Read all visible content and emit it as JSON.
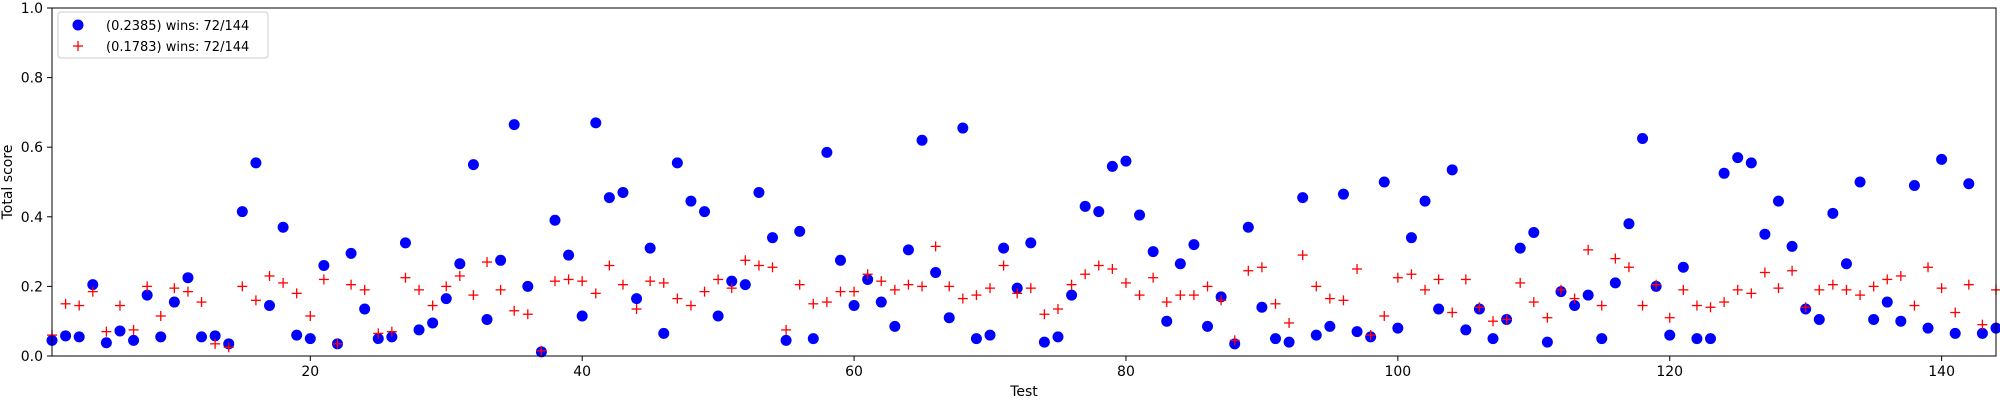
{
  "chart_data": {
    "type": "scatter",
    "xlabel": "Test",
    "ylabel": "Total score",
    "xlim": [
      1,
      144
    ],
    "ylim": [
      0,
      1.0
    ],
    "x_ticks": [
      20,
      40,
      60,
      80,
      100,
      120,
      140
    ],
    "y_ticks": [
      0.0,
      0.2,
      0.4,
      0.6,
      0.8,
      1.0
    ],
    "x_tick_labels": [
      "20",
      "40",
      "60",
      "80",
      "100",
      "120",
      "140"
    ],
    "y_tick_labels": [
      "0.0",
      "0.2",
      "0.4",
      "0.6",
      "0.8",
      "1.0"
    ],
    "grid": false,
    "legend_position": "top-left",
    "series": [
      {
        "name": "(0.2385) wins: 72/144",
        "marker": "circle",
        "color": "#0000ff",
        "values": [
          0.045,
          0.058,
          0.055,
          0.205,
          0.038,
          0.072,
          0.045,
          0.175,
          0.055,
          0.155,
          0.225,
          0.055,
          0.058,
          0.035,
          0.415,
          0.555,
          0.145,
          0.37,
          0.06,
          0.05,
          0.26,
          0.035,
          0.295,
          0.135,
          0.05,
          0.055,
          0.325,
          0.075,
          0.095,
          0.165,
          0.265,
          0.55,
          0.105,
          0.275,
          0.665,
          0.2,
          0.012,
          0.39,
          0.29,
          0.115,
          0.67,
          0.455,
          0.47,
          0.165,
          0.31,
          0.065,
          0.555,
          0.445,
          0.415,
          0.115,
          0.215,
          0.205,
          0.47,
          0.34,
          0.045,
          0.358,
          0.05,
          0.585,
          0.275,
          0.145,
          0.22,
          0.155,
          0.085,
          0.305,
          0.62,
          0.24,
          0.11,
          0.655,
          0.05,
          0.06,
          0.31,
          0.195,
          0.325,
          0.04,
          0.055,
          0.175,
          0.43,
          0.415,
          0.545,
          0.56,
          0.405,
          0.3,
          0.1,
          0.265,
          0.32,
          0.085,
          0.17,
          0.035,
          0.37,
          0.14,
          0.05,
          0.04,
          0.455,
          0.06,
          0.085,
          0.465,
          0.07,
          0.055,
          0.5,
          0.08,
          0.34,
          0.445,
          0.135,
          0.535,
          0.075,
          0.135,
          0.05,
          0.105,
          0.31,
          0.355,
          0.04,
          0.185,
          0.145,
          0.175,
          0.05,
          0.21,
          0.38,
          0.625,
          0.2,
          0.06,
          0.255,
          0.05,
          0.05,
          0.525,
          0.57,
          0.555,
          0.35,
          0.445,
          0.315,
          0.135,
          0.105,
          0.41,
          0.265,
          0.5,
          0.105,
          0.155,
          0.1,
          0.49,
          0.08,
          0.565,
          0.065,
          0.495,
          0.065,
          0.08
        ]
      },
      {
        "name": "(0.1783) wins: 72/144",
        "marker": "plus",
        "color": "#ff0000",
        "values": [
          0.06,
          0.15,
          0.145,
          0.185,
          0.07,
          0.145,
          0.075,
          0.2,
          0.115,
          0.195,
          0.185,
          0.155,
          0.035,
          0.025,
          0.2,
          0.16,
          0.23,
          0.21,
          0.18,
          0.115,
          0.22,
          0.035,
          0.205,
          0.19,
          0.065,
          0.07,
          0.225,
          0.19,
          0.145,
          0.2,
          0.23,
          0.175,
          0.27,
          0.19,
          0.13,
          0.12,
          0.015,
          0.215,
          0.22,
          0.215,
          0.18,
          0.26,
          0.205,
          0.135,
          0.215,
          0.21,
          0.165,
          0.145,
          0.185,
          0.22,
          0.195,
          0.275,
          0.26,
          0.255,
          0.075,
          0.205,
          0.15,
          0.155,
          0.185,
          0.185,
          0.235,
          0.215,
          0.19,
          0.205,
          0.2,
          0.315,
          0.2,
          0.165,
          0.175,
          0.195,
          0.26,
          0.18,
          0.195,
          0.12,
          0.135,
          0.205,
          0.235,
          0.26,
          0.25,
          0.21,
          0.175,
          0.225,
          0.155,
          0.175,
          0.175,
          0.2,
          0.16,
          0.045,
          0.245,
          0.255,
          0.15,
          0.095,
          0.29,
          0.2,
          0.165,
          0.16,
          0.25,
          0.06,
          0.115,
          0.225,
          0.235,
          0.19,
          0.22,
          0.125,
          0.22,
          0.14,
          0.1,
          0.105,
          0.21,
          0.155,
          0.11,
          0.19,
          0.165,
          0.305,
          0.145,
          0.28,
          0.255,
          0.145,
          0.205,
          0.11,
          0.19,
          0.145,
          0.14,
          0.155,
          0.19,
          0.18,
          0.24,
          0.195,
          0.245,
          0.14,
          0.19,
          0.205,
          0.19,
          0.175,
          0.2,
          0.22,
          0.23,
          0.145,
          0.255,
          0.195,
          0.125,
          0.205,
          0.09,
          0.19
        ]
      }
    ]
  }
}
